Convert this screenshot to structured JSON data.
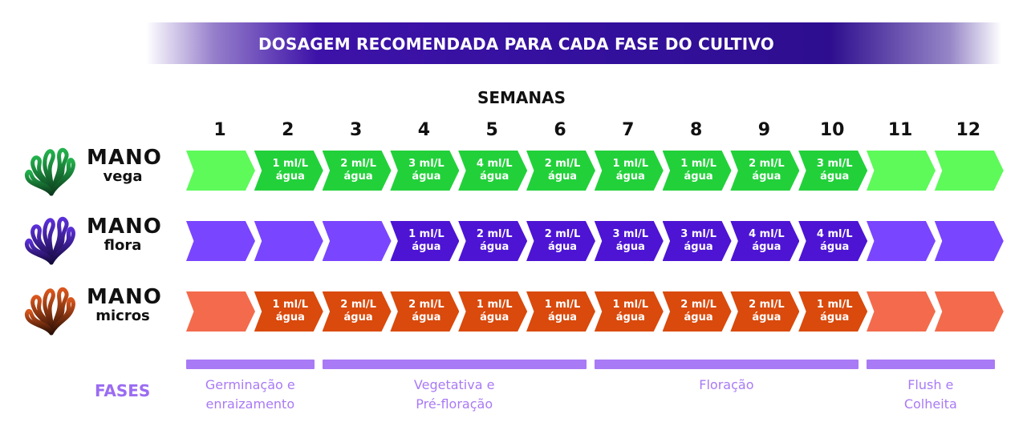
{
  "title": "DOSAGEM RECOMENDADA PARA CADA FASE DO CULTIVO",
  "weeks_label": "SEMANAS",
  "weeks": [
    "1",
    "2",
    "3",
    "4",
    "5",
    "6",
    "7",
    "8",
    "9",
    "10",
    "11",
    "12"
  ],
  "colors": {
    "banner": "#33109c",
    "phase": "#a97af5"
  },
  "products": [
    {
      "brand": "MANO",
      "name": "vega",
      "icon": "plant-logo-icon",
      "logo_color_top": "#22b14c",
      "logo_color_bottom": "#0d3b1d",
      "light": "#5dfa5a",
      "dark": "#22d13a",
      "cells": [
        "",
        "1 ml/L\nágua",
        "2 ml/L\nágua",
        "3 ml/L\nágua",
        "4 ml/L\nágua",
        "2 ml/L\nágua",
        "1 ml/L\nágua",
        "1 ml/L\nágua",
        "2 ml/L\nágua",
        "3 ml/L\nágua",
        "",
        ""
      ]
    },
    {
      "brand": "MANO",
      "name": "flora",
      "icon": "plant-logo-icon",
      "logo_color_top": "#5b2fd6",
      "logo_color_bottom": "#14093d",
      "light": "#7a45ff",
      "dark": "#4d14d4",
      "cells": [
        "",
        "",
        "",
        "1 ml/L\nágua",
        "2 ml/L\nágua",
        "2 ml/L\nágua",
        "3 ml/L\nágua",
        "3 ml/L\nágua",
        "4 ml/L\nágua",
        "4 ml/L\nágua",
        "",
        ""
      ]
    },
    {
      "brand": "MANO",
      "name": "micros",
      "icon": "plant-logo-icon",
      "logo_color_top": "#d9561c",
      "logo_color_bottom": "#2a0f05",
      "light": "#f36b4c",
      "dark": "#d94a0c",
      "cells": [
        "",
        "1 ml/L\nágua",
        "2 ml/L\nágua",
        "2 ml/L\nágua",
        "1 ml/L\nágua",
        "1 ml/L\nágua",
        "1 ml/L\nágua",
        "2 ml/L\nágua",
        "2 ml/L\nágua",
        "1 ml/L\nágua",
        "",
        ""
      ]
    }
  ],
  "phases_label": "FASES",
  "phases": [
    {
      "label": "Germinação e\nenraizamento",
      "start_week": 1,
      "end_week": 2
    },
    {
      "label": "Vegetativa e\nPré-floração",
      "start_week": 3,
      "end_week": 6
    },
    {
      "label": "Floração",
      "start_week": 7,
      "end_week": 10
    },
    {
      "label": "Flush e\nColheita",
      "start_week": 11,
      "end_week": 12
    }
  ]
}
